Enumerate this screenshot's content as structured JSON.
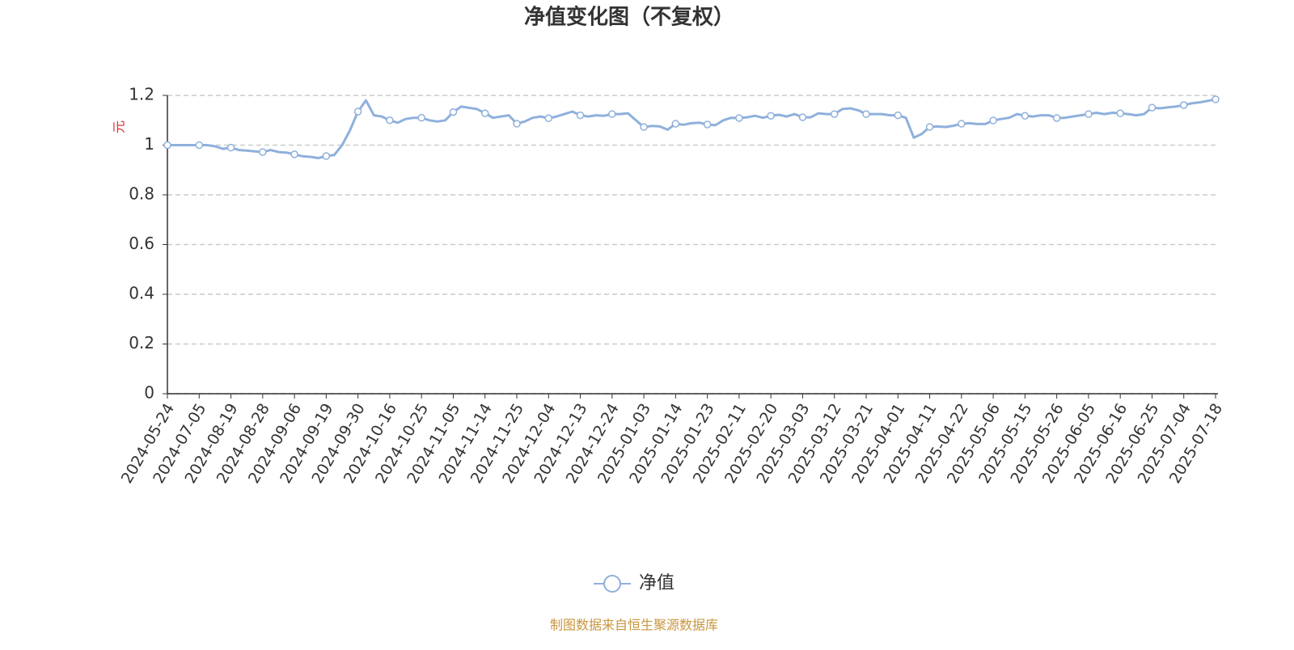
{
  "chart_data": {
    "type": "line",
    "title": "净值变化图（不复权）",
    "y_label": "元",
    "source": "制图数据来自恒生聚源数据库",
    "categories": [
      "2024-05-24",
      null,
      null,
      null,
      "2024-07-05",
      null,
      null,
      null,
      "2024-08-19",
      null,
      null,
      null,
      "2024-08-28",
      null,
      null,
      null,
      "2024-09-06",
      null,
      null,
      null,
      "2024-09-19",
      null,
      null,
      null,
      "2024-09-30",
      null,
      null,
      null,
      "2024-10-16",
      null,
      null,
      null,
      "2024-10-25",
      null,
      null,
      null,
      "2024-11-05",
      null,
      null,
      null,
      "2024-11-14",
      null,
      null,
      null,
      "2024-11-25",
      null,
      null,
      null,
      "2024-12-04",
      null,
      null,
      null,
      "2024-12-13",
      null,
      null,
      null,
      "2024-12-24",
      null,
      null,
      null,
      "2025-01-03",
      null,
      null,
      null,
      "2025-01-14",
      null,
      null,
      null,
      "2025-01-23",
      null,
      null,
      null,
      "2025-02-11",
      null,
      null,
      null,
      "2025-02-20",
      null,
      null,
      null,
      "2025-03-03",
      null,
      null,
      null,
      "2025-03-12",
      null,
      null,
      null,
      "2025-03-21",
      null,
      null,
      null,
      "2025-04-01",
      null,
      null,
      null,
      "2025-04-11",
      null,
      null,
      null,
      "2025-04-22",
      null,
      null,
      null,
      "2025-05-06",
      null,
      null,
      null,
      "2025-05-15",
      null,
      null,
      null,
      "2025-05-26",
      null,
      null,
      null,
      "2025-06-05",
      null,
      null,
      null,
      "2025-06-16",
      null,
      null,
      null,
      "2025-06-25",
      null,
      null,
      null,
      "2025-07-04",
      null,
      null,
      null,
      "2025-07-18"
    ],
    "series": [
      {
        "name": "净值",
        "color": "#8fb0dc",
        "values": [
          1.0,
          1.0,
          1.0,
          1.0,
          1.0,
          1.0,
          0.995,
          0.985,
          0.99,
          0.98,
          0.978,
          0.975,
          0.972,
          0.98,
          0.972,
          0.97,
          0.963,
          0.955,
          0.953,
          0.948,
          0.956,
          0.96,
          1.0,
          1.06,
          1.135,
          1.18,
          1.12,
          1.115,
          1.1,
          1.09,
          1.105,
          1.11,
          1.11,
          1.1,
          1.095,
          1.1,
          1.133,
          1.155,
          1.15,
          1.145,
          1.128,
          1.11,
          1.115,
          1.12,
          1.086,
          1.095,
          1.11,
          1.115,
          1.108,
          1.115,
          1.125,
          1.135,
          1.12,
          1.115,
          1.12,
          1.118,
          1.125,
          1.125,
          1.128,
          1.1,
          1.073,
          1.077,
          1.075,
          1.062,
          1.086,
          1.082,
          1.088,
          1.09,
          1.083,
          1.08,
          1.1,
          1.11,
          1.109,
          1.112,
          1.118,
          1.11,
          1.118,
          1.122,
          1.115,
          1.125,
          1.112,
          1.112,
          1.128,
          1.125,
          1.125,
          1.145,
          1.148,
          1.14,
          1.125,
          1.125,
          1.125,
          1.12,
          1.12,
          1.11,
          1.03,
          1.045,
          1.073,
          1.075,
          1.073,
          1.078,
          1.086,
          1.088,
          1.085,
          1.085,
          1.099,
          1.105,
          1.11,
          1.125,
          1.118,
          1.115,
          1.12,
          1.12,
          1.109,
          1.11,
          1.115,
          1.12,
          1.125,
          1.13,
          1.125,
          1.13,
          1.128,
          1.125,
          1.12,
          1.125,
          1.151,
          1.148,
          1.152,
          1.155,
          1.161,
          1.168,
          1.172,
          1.178,
          1.184
        ]
      }
    ],
    "ylim": [
      0,
      1.2
    ],
    "yticks": [
      0,
      0.2,
      0.4,
      0.6,
      0.8,
      1,
      1.2
    ],
    "grid": true,
    "legend": "bottom"
  }
}
